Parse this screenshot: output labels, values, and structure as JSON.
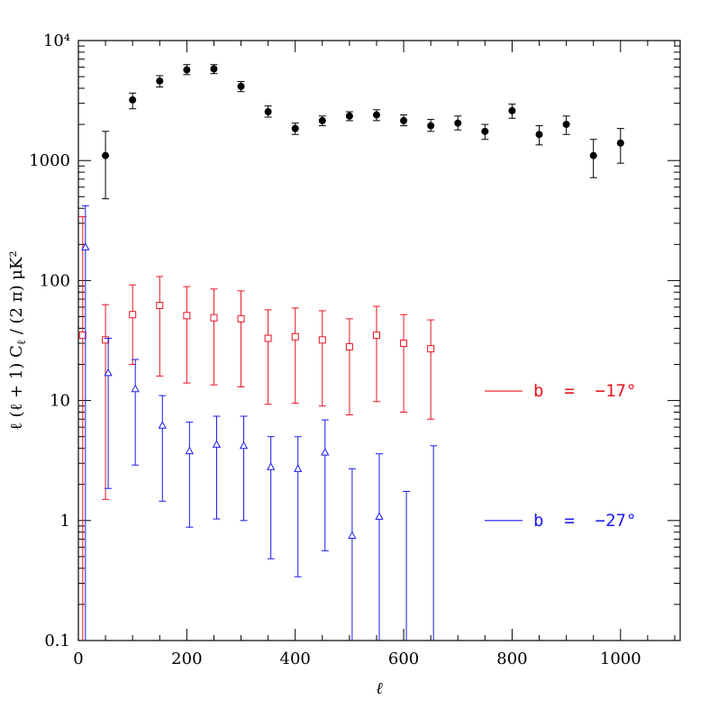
{
  "chart_data": {
    "type": "scatter",
    "x_scale": "linear",
    "y_scale": "log",
    "xlim": [
      0,
      1110
    ],
    "ylim": [
      0.1,
      10000
    ],
    "x_ticks": [
      0,
      200,
      400,
      600,
      800,
      1000
    ],
    "x_tick_labels": [
      "0",
      "200",
      "400",
      "600",
      "800",
      "1000"
    ],
    "y_ticks": [
      0.1,
      1,
      10,
      100,
      1000,
      10000
    ],
    "y_tick_labels": [
      "0.1",
      "1",
      "10",
      "100",
      "1000",
      "10⁴"
    ],
    "xlabel": "ℓ",
    "ylabel": "ℓ (ℓ + 1)  C",
    "ylabel_subscript": "ℓ",
    "ylabel_tail": " / (2 π)   μK²",
    "grid": false,
    "legend_placement": "right",
    "series": [
      {
        "name": "",
        "marker": "filled-circle",
        "color": "#000000",
        "points": [
          {
            "x": 50,
            "y": 1100,
            "lo": 480,
            "hi": 1750
          },
          {
            "x": 100,
            "y": 3200,
            "lo": 2700,
            "hi": 3650
          },
          {
            "x": 150,
            "y": 4600,
            "lo": 4100,
            "hi": 5100
          },
          {
            "x": 200,
            "y": 5700,
            "lo": 5200,
            "hi": 6300
          },
          {
            "x": 250,
            "y": 5800,
            "lo": 5300,
            "hi": 6300
          },
          {
            "x": 300,
            "y": 4150,
            "lo": 3750,
            "hi": 4550
          },
          {
            "x": 350,
            "y": 2550,
            "lo": 2300,
            "hi": 2850
          },
          {
            "x": 400,
            "y": 1850,
            "lo": 1650,
            "hi": 2050
          },
          {
            "x": 450,
            "y": 2150,
            "lo": 1950,
            "hi": 2350
          },
          {
            "x": 500,
            "y": 2350,
            "lo": 2150,
            "hi": 2550
          },
          {
            "x": 550,
            "y": 2400,
            "lo": 2150,
            "hi": 2650
          },
          {
            "x": 600,
            "y": 2150,
            "lo": 1950,
            "hi": 2400
          },
          {
            "x": 650,
            "y": 1950,
            "lo": 1750,
            "hi": 2200
          },
          {
            "x": 700,
            "y": 2050,
            "lo": 1800,
            "hi": 2350
          },
          {
            "x": 750,
            "y": 1750,
            "lo": 1500,
            "hi": 2000
          },
          {
            "x": 800,
            "y": 2600,
            "lo": 2250,
            "hi": 2950
          },
          {
            "x": 850,
            "y": 1650,
            "lo": 1350,
            "hi": 1950
          },
          {
            "x": 900,
            "y": 2000,
            "lo": 1650,
            "hi": 2350
          },
          {
            "x": 950,
            "y": 1100,
            "lo": 720,
            "hi": 1500
          },
          {
            "x": 1000,
            "y": 1400,
            "lo": 950,
            "hi": 1850
          }
        ]
      },
      {
        "name": "b  =  −17°",
        "marker": "open-square",
        "color": "#e8141e",
        "points": [
          {
            "x": 8,
            "y": 35,
            "lo": 0.1,
            "hi": 340
          },
          {
            "x": 50,
            "y": 32,
            "lo": 1.5,
            "hi": 63
          },
          {
            "x": 100,
            "y": 52,
            "lo": 20,
            "hi": 92
          },
          {
            "x": 150,
            "y": 62,
            "lo": 16,
            "hi": 108
          },
          {
            "x": 200,
            "y": 51,
            "lo": 14,
            "hi": 89
          },
          {
            "x": 250,
            "y": 49,
            "lo": 13.5,
            "hi": 85
          },
          {
            "x": 300,
            "y": 48,
            "lo": 13,
            "hi": 82
          },
          {
            "x": 350,
            "y": 33,
            "lo": 9.3,
            "hi": 57
          },
          {
            "x": 400,
            "y": 34,
            "lo": 9.5,
            "hi": 59
          },
          {
            "x": 450,
            "y": 32,
            "lo": 9,
            "hi": 56
          },
          {
            "x": 500,
            "y": 28,
            "lo": 7.6,
            "hi": 48
          },
          {
            "x": 550,
            "y": 35,
            "lo": 9.8,
            "hi": 61
          },
          {
            "x": 600,
            "y": 30,
            "lo": 8,
            "hi": 52
          },
          {
            "x": 650,
            "y": 27,
            "lo": 7,
            "hi": 47
          }
        ]
      },
      {
        "name": "b  =  −27°",
        "marker": "open-triangle",
        "color": "#1a1aee",
        "points": [
          {
            "x": 13,
            "y": 190,
            "lo": 0.1,
            "hi": 420
          },
          {
            "x": 55,
            "y": 17,
            "lo": 1.85,
            "hi": 33
          },
          {
            "x": 105,
            "y": 12.5,
            "lo": 2.9,
            "hi": 22
          },
          {
            "x": 155,
            "y": 6.2,
            "lo": 1.45,
            "hi": 11
          },
          {
            "x": 205,
            "y": 3.8,
            "lo": 0.88,
            "hi": 6.6
          },
          {
            "x": 255,
            "y": 4.3,
            "lo": 1.03,
            "hi": 7.4
          },
          {
            "x": 305,
            "y": 4.2,
            "lo": 1.0,
            "hi": 7.4
          },
          {
            "x": 355,
            "y": 2.8,
            "lo": 0.48,
            "hi": 5.0
          },
          {
            "x": 405,
            "y": 2.7,
            "lo": 0.34,
            "hi": 5.0
          },
          {
            "x": 455,
            "y": 3.7,
            "lo": 0.56,
            "hi": 6.9
          },
          {
            "x": 505,
            "y": 0.75,
            "lo": 0.1,
            "hi": 2.7
          },
          {
            "x": 555,
            "y": 1.08,
            "lo": 0.1,
            "hi": 3.6
          },
          {
            "x": 605,
            "y": null,
            "lo": 0.1,
            "hi": 1.75
          },
          {
            "x": 655,
            "y": null,
            "lo": 0.1,
            "hi": 4.2
          }
        ]
      }
    ],
    "legend": [
      {
        "label": "b  =  −17°",
        "color": "#e8141e",
        "y": 12
      },
      {
        "label": "b  =  −27°",
        "color": "#1a1aee",
        "y": 1.0
      }
    ]
  }
}
